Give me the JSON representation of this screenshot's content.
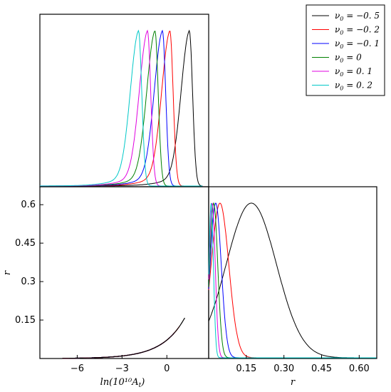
{
  "chart_data": [
    {
      "type": "line",
      "panel": "top-left",
      "xlim": [
        -8.5,
        2.8
      ],
      "ylabel": "",
      "xlabel": "",
      "series_peaks": [
        {
          "name": "ν0 = -0.5",
          "peak_x": 1.5
        },
        {
          "name": "ν0 = -0.2",
          "peak_x": 0.2
        },
        {
          "name": "ν0 = -0.1",
          "peak_x": -0.3
        },
        {
          "name": "ν0 = 0",
          "peak_x": -0.8
        },
        {
          "name": "ν0 = 0.1",
          "peak_x": -1.3
        },
        {
          "name": "ν0 = 0.2",
          "peak_x": -1.9
        }
      ]
    },
    {
      "type": "line",
      "panel": "bottom-left",
      "xlim": [
        -8.5,
        2.8
      ],
      "ylim": [
        0.0,
        0.67
      ],
      "xticks": [
        "−6",
        "−3",
        "0"
      ],
      "xtick_values": [
        -6,
        -3,
        0
      ],
      "yticks": [
        "0.15",
        "0.3",
        "0.45",
        "0.6"
      ],
      "ytick_values": [
        0.15,
        0.3,
        0.45,
        0.6
      ],
      "xlabel": "ln(10¹⁰Aₜ)",
      "ylabel": "r"
    },
    {
      "type": "line",
      "panel": "bottom-right",
      "xlim": [
        0.0,
        0.67
      ],
      "xticks": [
        "0.15",
        "0.30",
        "0.45",
        "0.60"
      ],
      "xtick_values": [
        0.15,
        0.3,
        0.45,
        0.6
      ],
      "xlabel": "r",
      "series": [
        {
          "name": "ν0 = -0.5",
          "peak": 0.17,
          "sigma": 0.1
        },
        {
          "name": "ν0 = -0.2",
          "peak": 0.045,
          "sigma": 0.035
        },
        {
          "name": "ν0 = -0.1",
          "peak": 0.028,
          "sigma": 0.022
        },
        {
          "name": "ν0 = 0",
          "peak": 0.02,
          "sigma": 0.016
        },
        {
          "name": "ν0 = 0.1",
          "peak": 0.014,
          "sigma": 0.012
        },
        {
          "name": "ν0 = 0.2",
          "peak": 0.01,
          "sigma": 0.009
        }
      ]
    }
  ],
  "legend": {
    "placement": "top-right",
    "entries": [
      {
        "nu": "−0. 5",
        "color": "#000000"
      },
      {
        "nu": "−0. 2",
        "color": "#ff0000"
      },
      {
        "nu": "−0. 1",
        "color": "#0000ff"
      },
      {
        "nu": "0",
        "color": "#008000"
      },
      {
        "nu": "0. 1",
        "color": "#e000e0"
      },
      {
        "nu": "0. 2",
        "color": "#00c8c8"
      }
    ]
  },
  "labels": {
    "x_left": "ln(10¹⁰A",
    "x_left_sub": "t",
    "x_left_end": ")",
    "y_left": "r",
    "x_right": "r"
  }
}
